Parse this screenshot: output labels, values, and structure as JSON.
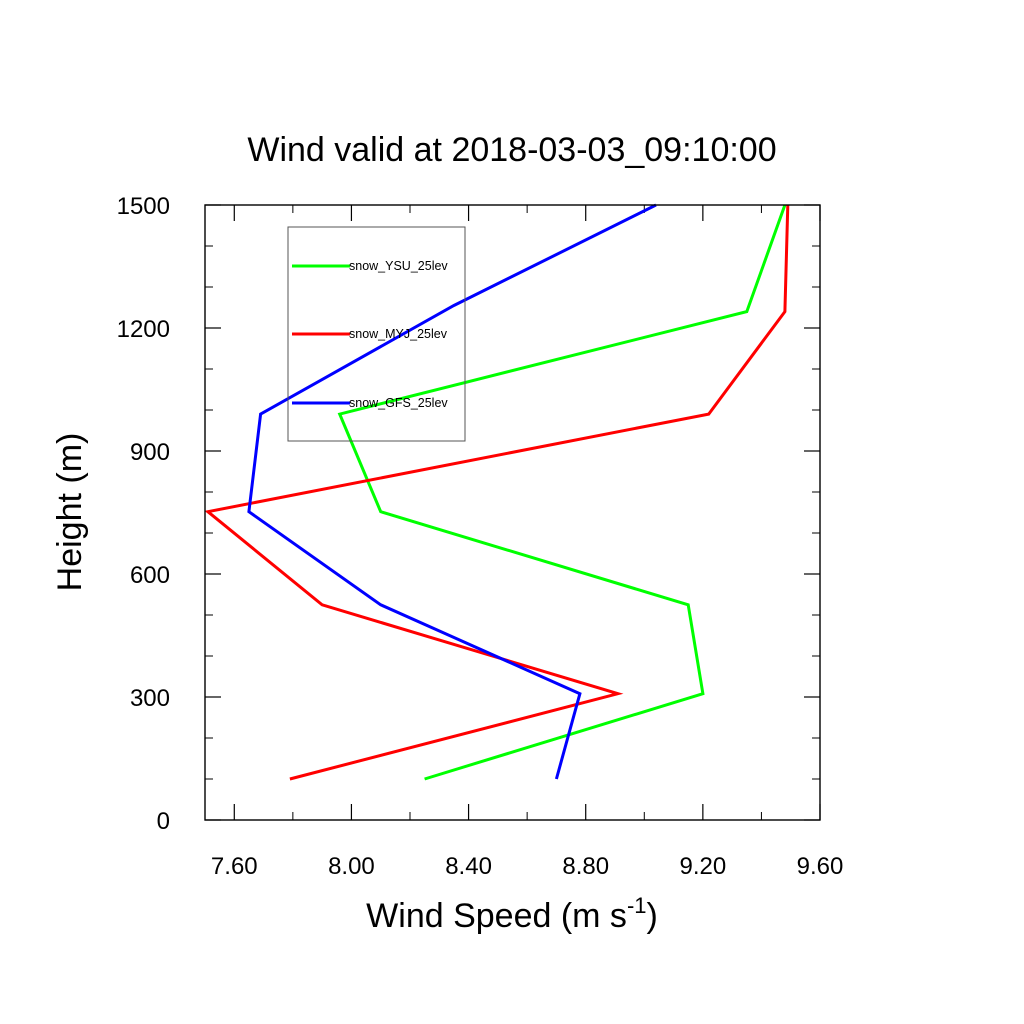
{
  "chart_data": {
    "type": "line",
    "title": "Wind valid at 2018-03-03_09:10:00",
    "xlabel": "Wind Speed (m s",
    "xlabel_sup": "-1",
    "xlabel_close": ")",
    "ylabel": "Height (m)",
    "xlim": [
      7.5,
      9.6
    ],
    "ylim": [
      0,
      1500
    ],
    "xticks": [
      7.6,
      8.0,
      8.4,
      8.8,
      9.2,
      9.6
    ],
    "xtick_labels": [
      "7.60",
      "8.00",
      "8.40",
      "8.80",
      "9.20",
      "9.60"
    ],
    "yticks": [
      0,
      300,
      600,
      900,
      1200,
      1500
    ],
    "ytick_labels": [
      "0",
      "300",
      "600",
      "900",
      "1200",
      "1500"
    ],
    "grid": false,
    "legend_position": "top-left",
    "series": [
      {
        "name": "snow_YSU_25lev",
        "color": "#00ff00",
        "x": [
          8.25,
          9.2,
          9.15,
          8.1,
          7.96,
          9.35,
          9.48
        ],
        "y": [
          100,
          308,
          525,
          752,
          990,
          1240,
          1500
        ]
      },
      {
        "name": "snow_MYJ_25lev",
        "color": "#ff0000",
        "x": [
          7.79,
          8.91,
          7.9,
          7.51,
          9.22,
          9.48,
          9.49
        ],
        "y": [
          100,
          308,
          525,
          752,
          990,
          1240,
          1500
        ]
      },
      {
        "name": "snow_GFS_25lev",
        "color": "#0000ff",
        "x": [
          8.7,
          8.78,
          8.1,
          7.65,
          7.69,
          8.35,
          9.04
        ],
        "y": [
          100,
          308,
          525,
          752,
          990,
          1255,
          1500
        ]
      }
    ]
  }
}
